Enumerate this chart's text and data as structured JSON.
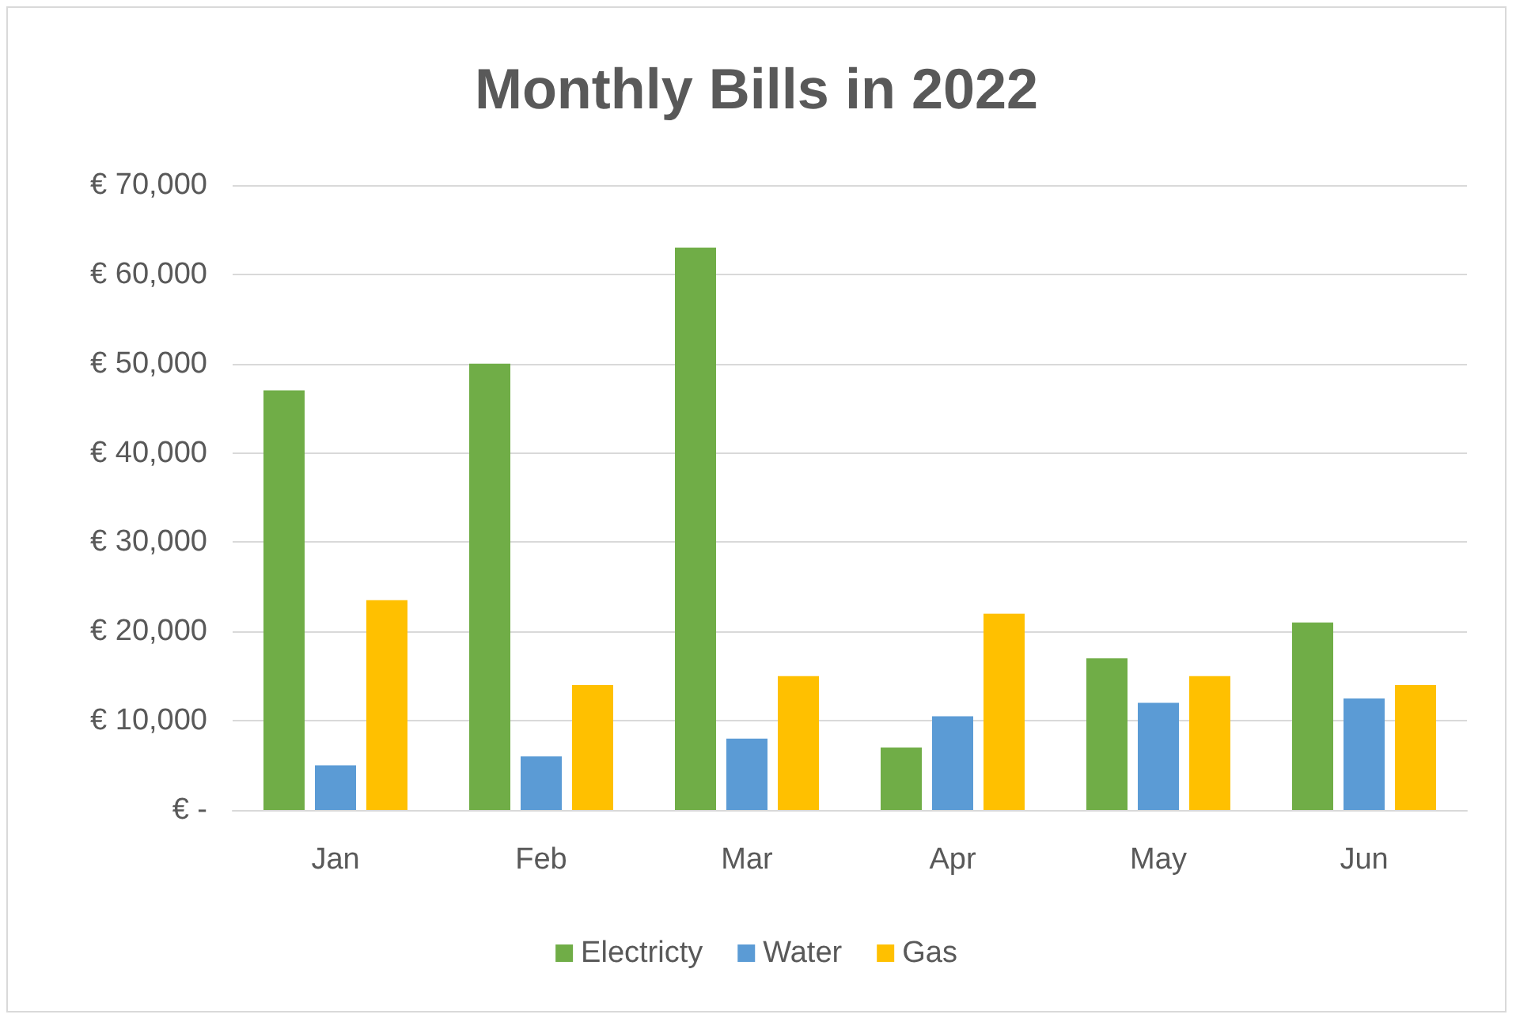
{
  "chart_data": {
    "type": "bar",
    "title": "Monthly Bills in 2022",
    "categories": [
      "Jan",
      "Feb",
      "Mar",
      "Apr",
      "May",
      "Jun"
    ],
    "series": [
      {
        "name": "Electricty",
        "color": "#70ad47",
        "values": [
          47000,
          50000,
          63000,
          7000,
          17000,
          21000
        ]
      },
      {
        "name": "Water",
        "color": "#5b9bd5",
        "values": [
          5000,
          6000,
          8000,
          10500,
          12000,
          12500
        ]
      },
      {
        "name": "Gas",
        "color": "#ffc000",
        "values": [
          23500,
          14000,
          15000,
          22000,
          15000,
          14000
        ]
      }
    ],
    "ylim": [
      0,
      70000
    ],
    "yticks": [
      {
        "value": 0,
        "label": "€ -"
      },
      {
        "value": 10000,
        "label": "€ 10,000"
      },
      {
        "value": 20000,
        "label": "€ 20,000"
      },
      {
        "value": 30000,
        "label": "€ 30,000"
      },
      {
        "value": 40000,
        "label": "€ 40,000"
      },
      {
        "value": 50000,
        "label": "€ 50,000"
      },
      {
        "value": 60000,
        "label": "€ 60,000"
      },
      {
        "value": 70000,
        "label": "€ 70,000"
      }
    ],
    "grid": "y",
    "legend": "bottom"
  }
}
